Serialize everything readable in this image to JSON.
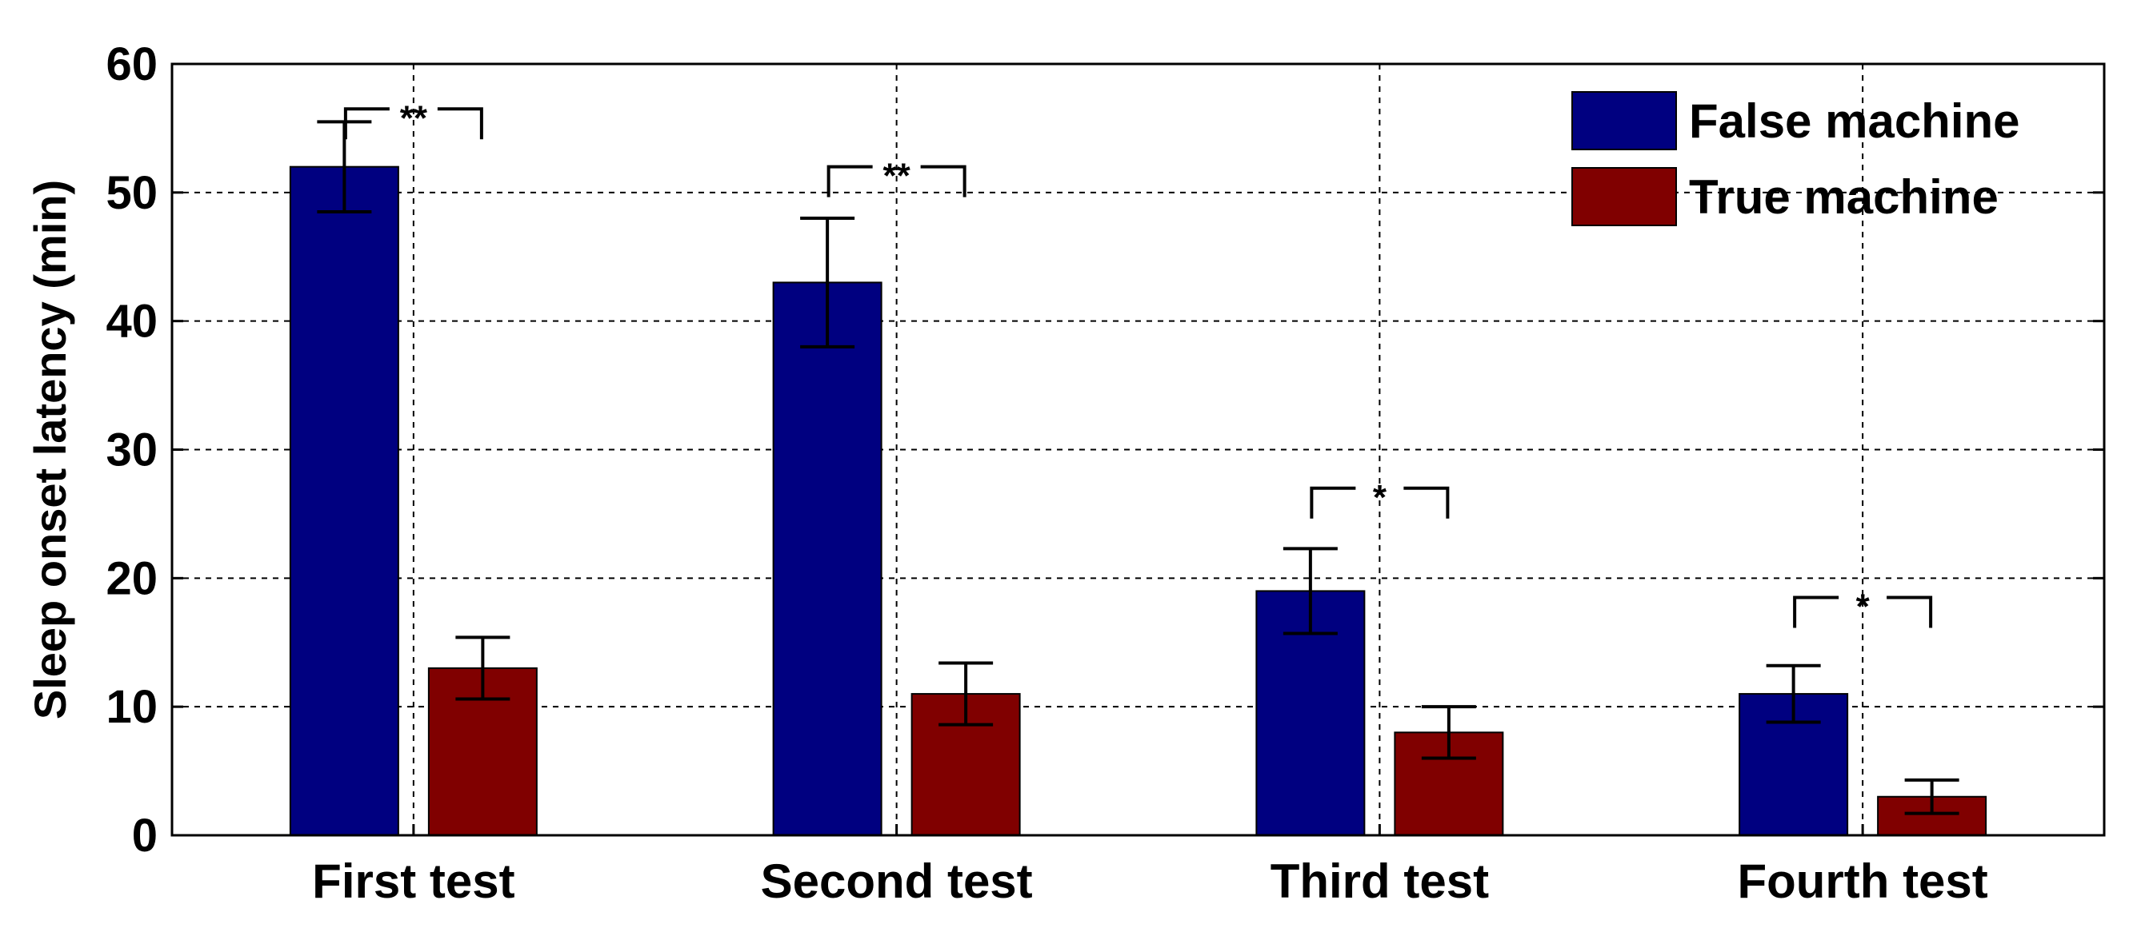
{
  "chart_data": {
    "type": "bar",
    "title": "",
    "xlabel": "",
    "ylabel": "Sleep onset latency (min)",
    "ylim": [
      0,
      60
    ],
    "yticks": [
      0,
      10,
      20,
      30,
      40,
      50,
      60
    ],
    "grid": true,
    "legend_position": "top-right",
    "categories": [
      "First test",
      "Second test",
      "Third test",
      "Fourth test"
    ],
    "series": [
      {
        "name": "False machine",
        "color": "#000080",
        "values": [
          52,
          43,
          19,
          11
        ],
        "errors": [
          3.5,
          5,
          3.3,
          2.2
        ]
      },
      {
        "name": "True machine",
        "color": "#800000",
        "values": [
          13,
          11,
          8,
          3
        ],
        "errors": [
          2.4,
          2.4,
          2,
          1.3
        ]
      }
    ],
    "significance": [
      {
        "category": "First test",
        "label": "**",
        "y": 56.5
      },
      {
        "category": "Second test",
        "label": "**",
        "y": 52
      },
      {
        "category": "Third test",
        "label": "*",
        "y": 27
      },
      {
        "category": "Fourth test",
        "label": "*",
        "y": 18.5
      }
    ]
  }
}
